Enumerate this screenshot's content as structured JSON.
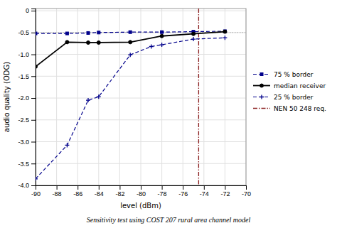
{
  "chart_data": {
    "type": "line",
    "subtitle": "Sensitivity test using COST 207 rural area channel model",
    "xlabel": "level (dBm)",
    "ylabel": "audio quality (ODG)",
    "series": [
      {
        "name": "75 % border",
        "color": "#00008B",
        "marker": "square",
        "line_style": "dashed",
        "x": [
          -90,
          -87,
          -85,
          -84,
          -81,
          -78,
          -75,
          -72
        ],
        "values": [
          -0.52,
          -0.52,
          -0.51,
          -0.5,
          -0.49,
          -0.49,
          -0.48,
          -0.47
        ]
      },
      {
        "name": "median receiver",
        "color": "#000000",
        "marker": "circle",
        "line_style": "solid",
        "x": [
          -90,
          -87,
          -85,
          -84,
          -81,
          -78,
          -75,
          -72
        ],
        "values": [
          -1.28,
          -0.72,
          -0.73,
          -0.73,
          -0.72,
          -0.58,
          -0.53,
          -0.48
        ]
      },
      {
        "name": "25 % border",
        "color": "#00008B",
        "marker": "plus",
        "line_style": "dashed",
        "x": [
          -90,
          -87,
          -85,
          -84,
          -81,
          -79,
          -78,
          -75,
          -72
        ],
        "values": [
          -3.85,
          -3.08,
          -2.05,
          -1.97,
          -1.01,
          -0.82,
          -0.78,
          -0.65,
          -0.62
        ]
      }
    ],
    "vlines": [
      {
        "name": "NEN 50 248 req.",
        "x": -74.5,
        "color": "#8B2020",
        "line_style": "dashdot"
      }
    ],
    "hlines": [
      {
        "y": -0.5,
        "color": "#aaaaaa",
        "line_style": "dotted"
      }
    ],
    "xlim": [
      -90,
      -70
    ],
    "ylim": [
      -4.0,
      0.05
    ],
    "xticks": [
      -90,
      -88,
      -86,
      -84,
      -82,
      -80,
      -78,
      -76,
      -74,
      -72,
      -70
    ],
    "yticks": [
      0,
      -0.5,
      {
        "value": -1.0,
        "label": "-1.0"
      },
      -1.5,
      {
        "value": -2.0,
        "label": "-2.0"
      },
      -2.5,
      {
        "value": -3.0,
        "label": "-3.0"
      },
      -3.5,
      {
        "value": -4.0,
        "label": "-4.0"
      }
    ],
    "grid": true,
    "legend": "right"
  }
}
